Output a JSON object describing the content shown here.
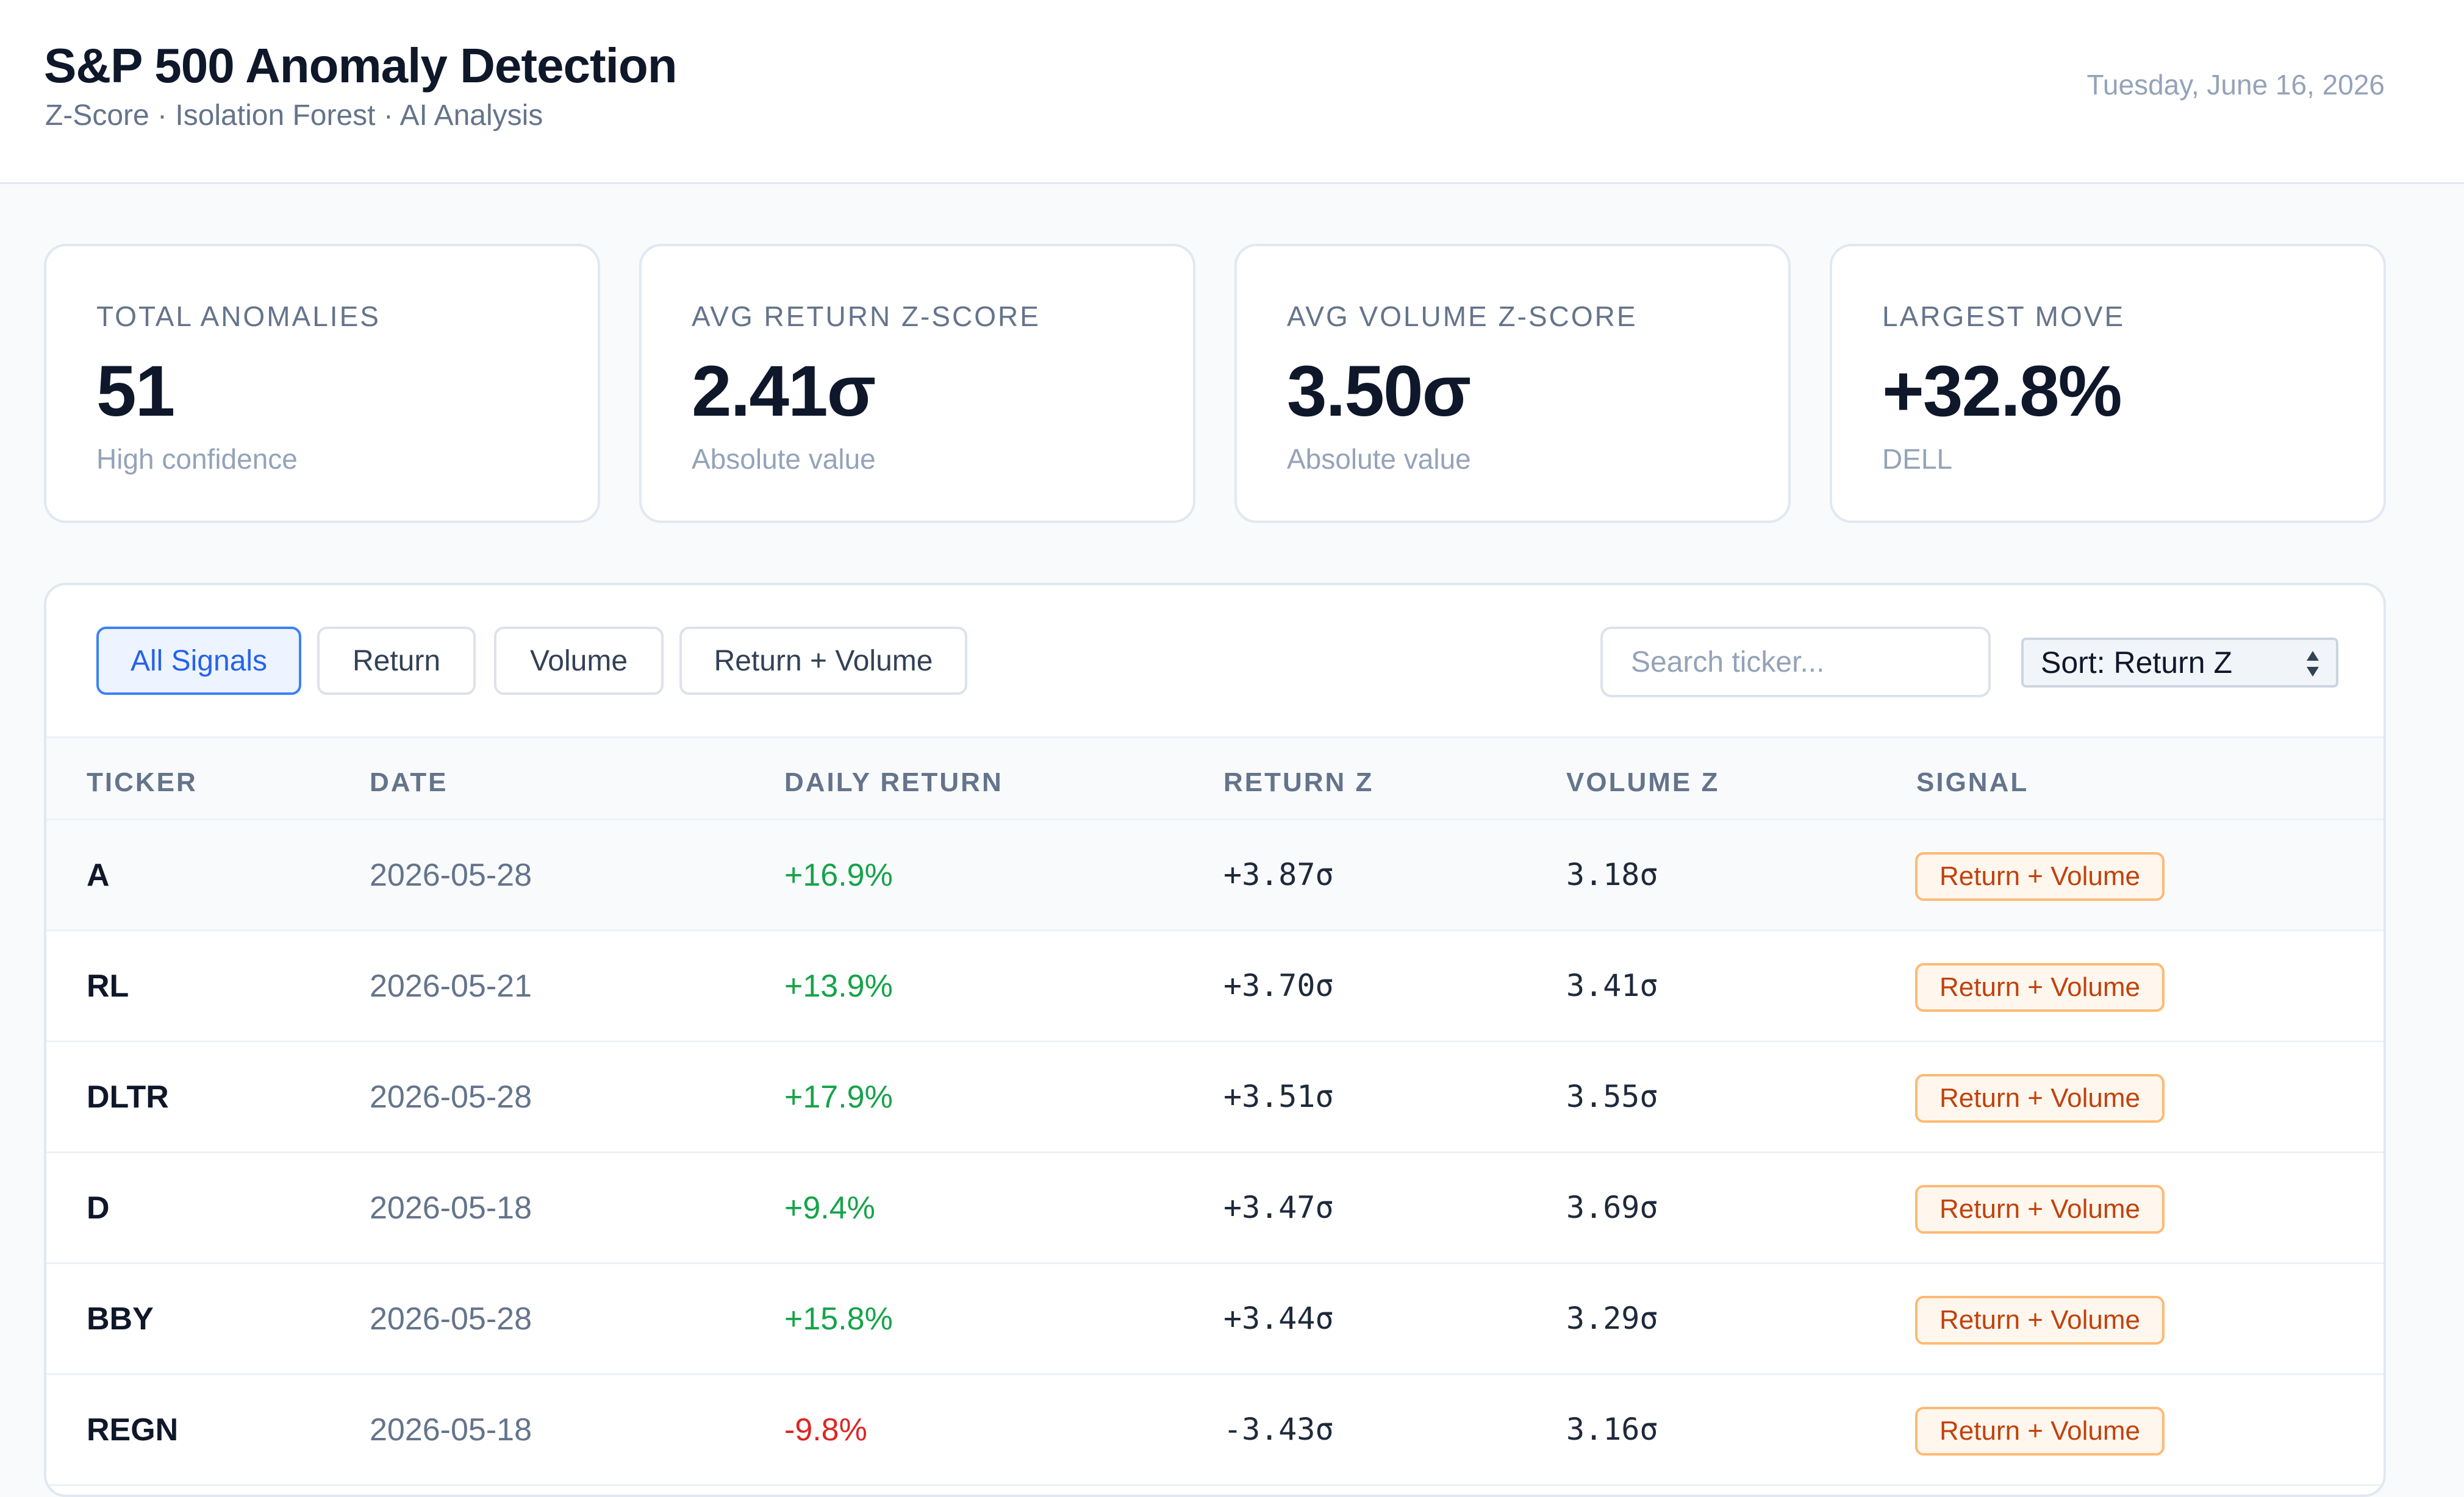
{
  "header": {
    "title": "S&P 500 Anomaly Detection",
    "subtitle": "Z-Score · Isolation Forest · AI Analysis",
    "date": "Tuesday, June 16, 2026"
  },
  "stats": [
    {
      "label": "Total Anomalies",
      "value": "51",
      "note": "High confidence"
    },
    {
      "label": "Avg Return Z-Score",
      "value": "2.41σ",
      "note": "Absolute value"
    },
    {
      "label": "Avg Volume Z-Score",
      "value": "3.50σ",
      "note": "Absolute value"
    },
    {
      "label": "Largest Move",
      "value": "+32.8%",
      "note": "DELL"
    }
  ],
  "filters": [
    {
      "label": "All Signals",
      "active": true
    },
    {
      "label": "Return",
      "active": false
    },
    {
      "label": "Volume",
      "active": false
    },
    {
      "label": "Return + Volume",
      "active": false
    }
  ],
  "search": {
    "placeholder": "Search ticker...",
    "value": ""
  },
  "sort": {
    "selected": "Sort: Return Z"
  },
  "table": {
    "columns": [
      "Ticker",
      "Date",
      "Daily Return",
      "Return Z",
      "Volume Z",
      "Signal"
    ],
    "rows": [
      {
        "ticker": "A",
        "date": "2026-05-28",
        "ret": "+16.9%",
        "rz": "+3.87σ",
        "vz": "3.18σ",
        "signal": "Return + Volume"
      },
      {
        "ticker": "RL",
        "date": "2026-05-21",
        "ret": "+13.9%",
        "rz": "+3.70σ",
        "vz": "3.41σ",
        "signal": "Return + Volume"
      },
      {
        "ticker": "DLTR",
        "date": "2026-05-28",
        "ret": "+17.9%",
        "rz": "+3.51σ",
        "vz": "3.55σ",
        "signal": "Return + Volume"
      },
      {
        "ticker": "D",
        "date": "2026-05-18",
        "ret": "+9.4%",
        "rz": "+3.47σ",
        "vz": "3.69σ",
        "signal": "Return + Volume"
      },
      {
        "ticker": "BBY",
        "date": "2026-05-28",
        "ret": "+15.8%",
        "rz": "+3.44σ",
        "vz": "3.29σ",
        "signal": "Return + Volume"
      },
      {
        "ticker": "REGN",
        "date": "2026-05-18",
        "ret": "-9.8%",
        "rz": "-3.43σ",
        "vz": "3.16σ",
        "signal": "Return + Volume"
      }
    ]
  },
  "colors": {
    "accent": "#3b82f6",
    "positive": "#16a34a",
    "negative": "#dc2626",
    "badge_text": "#c2410c",
    "badge_bg": "#fff7ed"
  }
}
